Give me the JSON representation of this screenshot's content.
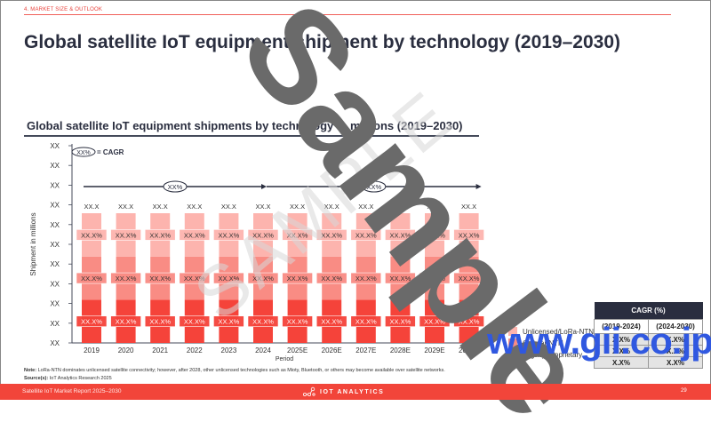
{
  "header": {
    "section_label": "4. MARKET SIZE & OUTLOOK",
    "page_title": "Global satellite IoT equipment shipment by technology (2019–2030)"
  },
  "chart_data": {
    "type": "bar",
    "stacked": true,
    "title": "Global satellite IoT equipment shipments by technology in millions (2019–2030)",
    "xlabel": "Period",
    "ylabel": "Shipment in millions",
    "categories": [
      "2019",
      "2020",
      "2021",
      "2022",
      "2023",
      "2024",
      "2025E",
      "2026E",
      "2027E",
      "2028E",
      "2029E",
      "2030E"
    ],
    "y_tick_labels": [
      "XX",
      "XX",
      "XX",
      "XX",
      "XX",
      "XX",
      "XX",
      "XX",
      "XX",
      "XX",
      "XX"
    ],
    "totals": [
      "XX.X",
      "XX.X",
      "XX.X",
      "XX.X",
      "XX.X",
      "XX.X",
      "XX.X",
      "XX.X",
      "XX.X",
      "XX.X",
      "XX.X",
      "XX.X"
    ],
    "series": [
      {
        "name": "Legacy/Proprietary",
        "color": "#f5433a",
        "share": 0.333,
        "labels": [
          "XX.X%",
          "XX.X%",
          "XX.X%",
          "XX.X%",
          "XX.X%",
          "XX.X%",
          "XX.X%",
          "XX.X%",
          "XX.X%",
          "XX.X%",
          "XX.X%",
          "XX.X%"
        ]
      },
      {
        "name": "Cellular NTN",
        "color": "#f98c84",
        "share": 0.333,
        "labels": [
          "XX.X%",
          "XX.X%",
          "XX.X%",
          "XX.X%",
          "XX.X%",
          "XX.X%",
          "XX.X%",
          "XX.X%",
          "XX.X%",
          "XX.X%",
          "XX.X%",
          "XX.X%"
        ]
      },
      {
        "name": "Unlicensed/LoRa-NTN",
        "color": "#fdb4ae",
        "share": 0.334,
        "labels": [
          "XX.X%",
          "XX.X%",
          "XX.X%",
          "XX.X%",
          "XX.X%",
          "XX.X%",
          "XX.X%",
          "XX.X%",
          "XX.X%",
          "XX.X%",
          "XX.X%",
          "XX.X%"
        ]
      }
    ],
    "cagr_key": {
      "badge": "XX%",
      "label": "= CAGR"
    },
    "cagr_arrows": [
      {
        "from": "2019",
        "to": "2024",
        "label": "XX%"
      },
      {
        "from": "2024",
        "to": "2030E",
        "label": "XX%"
      }
    ],
    "legend_position": "bottom-right"
  },
  "cagr_table": {
    "title": "CAGR (%)",
    "periods": [
      "(2019-2024)",
      "(2024-2030)"
    ],
    "rows": [
      [
        "X.X%",
        "X.X%"
      ],
      [
        "X.X%",
        "X.X%"
      ],
      [
        "X.X%",
        "X.X%"
      ]
    ]
  },
  "note": {
    "label": "Note:",
    "text": "LoRa-NTN dominates unlicensed satellite connectivity; however, after 2028, other unlicensed technologies such as Mioty, Bluetooth, or others may become available over satellite networks."
  },
  "source": {
    "label": "Source(s):",
    "text": "IoT Analytics Research 2025"
  },
  "footer": {
    "report": "Satellite IoT Market Report 2025–2030",
    "brand": "IOT ANALYTICS",
    "page": "29"
  },
  "watermarks": {
    "sample": "Sample",
    "sample_faint": "SAMPLE",
    "url": "www.gii.co.jp"
  }
}
